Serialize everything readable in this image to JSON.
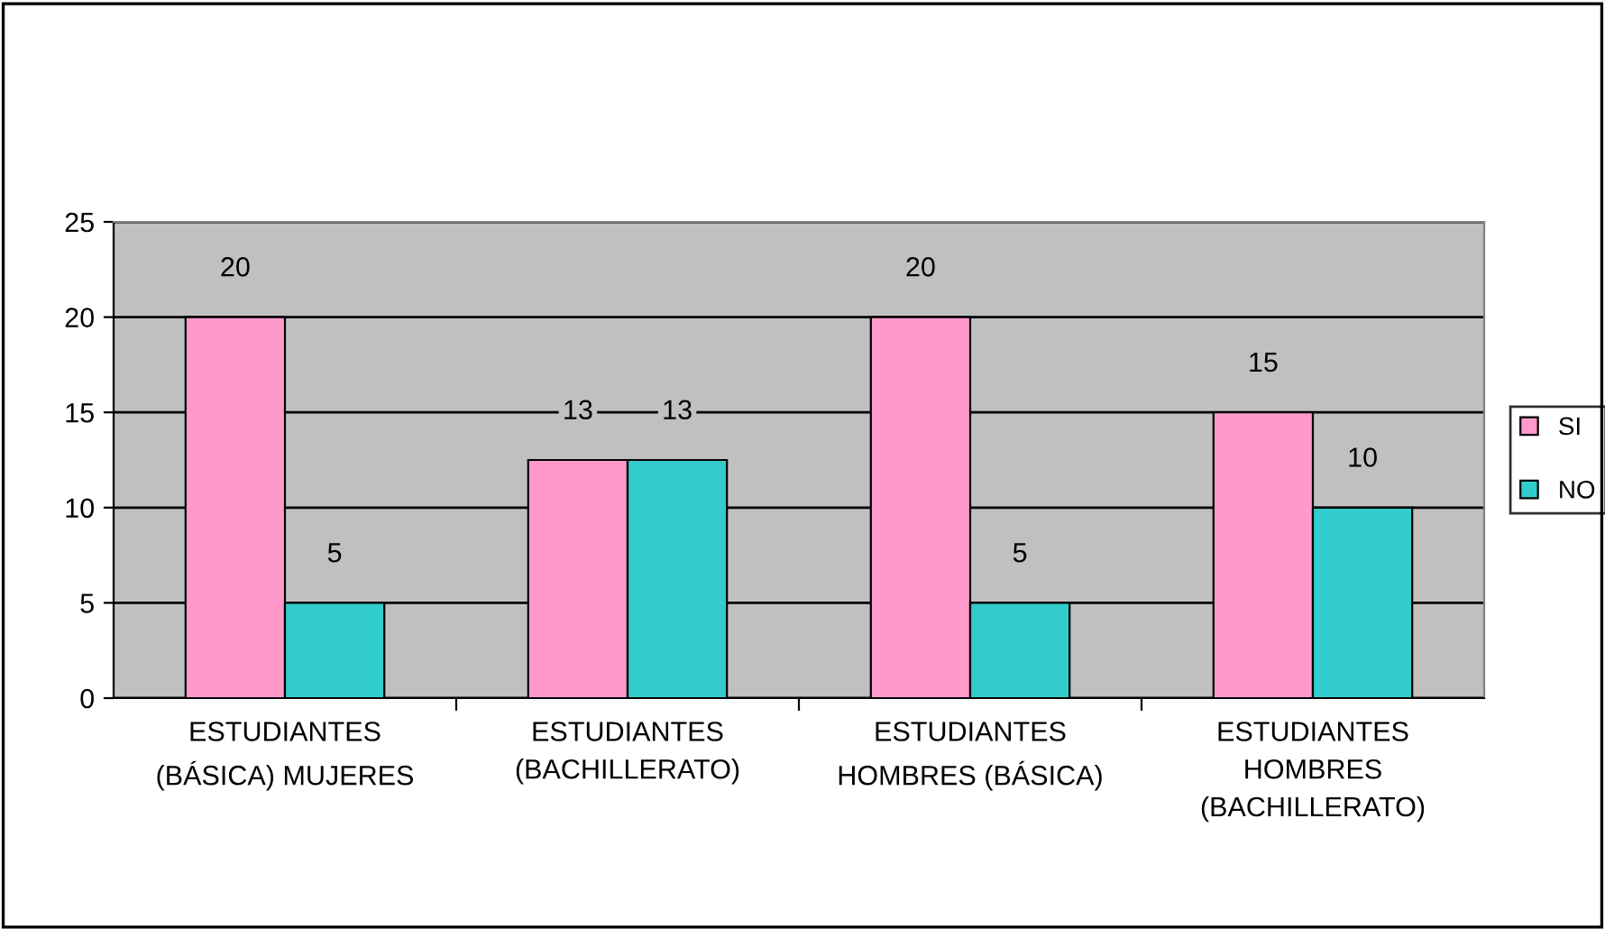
{
  "chart_data": {
    "type": "bar",
    "categories": [
      "ESTUDIANTES\n(BÁSICA) MUJERES",
      "ESTUDIANTES\n(BACHILLERATO)",
      "ESTUDIANTES\nHOMBRES (BÁSICA)",
      "ESTUDIANTES\nHOMBRES\n(BACHILLERATO)"
    ],
    "series": [
      {
        "name": "SI",
        "color": "#ff99cc",
        "values": [
          20,
          12.5,
          20,
          15
        ],
        "value_labels": [
          "20",
          "13",
          "20",
          "15"
        ]
      },
      {
        "name": "NO",
        "color": "#33cccc",
        "values": [
          5,
          12.5,
          5,
          10
        ],
        "value_labels": [
          "5",
          "13",
          "5",
          "10"
        ]
      }
    ],
    "ylim": [
      0,
      25
    ],
    "yticks": [
      0,
      5,
      10,
      15,
      20,
      25
    ],
    "grid": "y",
    "legend": "right"
  }
}
